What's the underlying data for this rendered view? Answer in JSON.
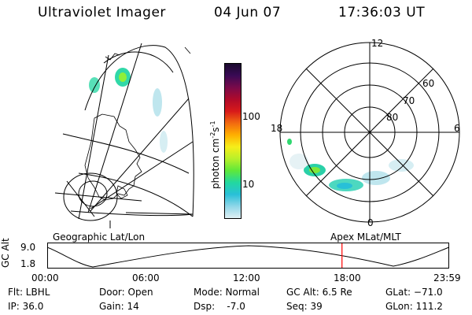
{
  "header": {
    "title": "Ultraviolet Imager",
    "date": "04 Jun 07",
    "time": "17:36:03 UT"
  },
  "colorbar": {
    "label": "photon cm",
    "label_sup1": "-2",
    "label_mid": "s",
    "label_sup2": "-1",
    "ticks": [
      "100",
      "10"
    ],
    "colors": [
      "#1a0a2e",
      "#3a0a55",
      "#7a0a4a",
      "#b00a2a",
      "#d81a1a",
      "#f26a10",
      "#ffb000",
      "#f6ee1a",
      "#b8f02a",
      "#5ee83a",
      "#22d8a0",
      "#28c0d8",
      "#8fd6e8",
      "#dff0f4"
    ]
  },
  "polar": {
    "mlt_labels": [
      "12",
      "18",
      "6",
      "0"
    ],
    "lat_labels": [
      "60",
      "70",
      "80"
    ]
  },
  "timeline": {
    "left_label": "Geographic Lat/Lon",
    "right_label": "Apex  MLat/MLT",
    "y_axis_label": "GC Alt",
    "y_ticks": [
      "9.0",
      "1.8"
    ],
    "x_ticks": [
      "00:00",
      "06:00",
      "12:00",
      "18:00",
      "23:59"
    ],
    "marker_time_hours": 17.6
  },
  "info": {
    "flt": "Flt: LBHL",
    "ip": "IP: 36.0",
    "door": "Door: Open",
    "gain": "Gain: 14",
    "mode": "Mode: Normal",
    "dsp": "Dsp:    -7.0",
    "gc_alt": "GC Alt: 6.5 Re",
    "seq": "Seq: 39",
    "glat": "GLat: −71.0",
    "glon": "GLon: 111.2"
  }
}
